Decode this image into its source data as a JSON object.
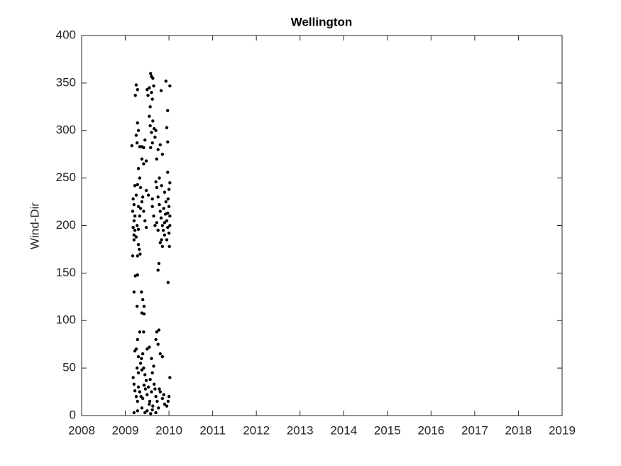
{
  "chart_data": {
    "type": "scatter",
    "title": "Wellington",
    "y_label": "Wind-Dir",
    "color": "#000000",
    "x": [
      2009.25,
      2009.28,
      2009.23,
      2009.5,
      2009.52,
      2009.55,
      2009.58,
      2009.6,
      2009.63,
      2009.65,
      2009.6,
      2009.62,
      2009.57,
      2009.82,
      2009.93,
      2010.02,
      2009.97,
      2009.28,
      2009.3,
      2009.25,
      2009.27,
      2009.33,
      2009.38,
      2009.42,
      2009.45,
      2009.15,
      2009.55,
      2009.57,
      2009.6,
      2009.63,
      2009.66,
      2009.68,
      2009.62,
      2009.58,
      2009.7,
      2009.75,
      2009.72,
      2009.8,
      2009.85,
      2009.95,
      2009.97,
      2009.38,
      2009.42,
      2009.48,
      2009.3,
      2009.33,
      2009.28,
      2009.22,
      2009.35,
      2009.48,
      2009.53,
      2009.62,
      2009.7,
      2009.72,
      2009.78,
      2009.83,
      2009.9,
      2009.97,
      2010.02,
      2010.0,
      2009.18,
      2009.2,
      2009.17,
      2009.22,
      2009.2,
      2009.18,
      2009.22,
      2009.2,
      2009.25,
      2009.27,
      2009.3,
      2009.33,
      2009.35,
      2009.38,
      2009.4,
      2009.42,
      2009.45,
      2009.48,
      2009.3,
      2009.32,
      2009.34,
      2009.28,
      2009.17,
      2009.2,
      2009.25,
      2009.3,
      2009.75,
      2009.78,
      2009.8,
      2009.82,
      2009.85,
      2009.87,
      2009.9,
      2009.92,
      2009.95,
      2009.97,
      2010.0,
      2010.02,
      2010.0,
      2009.98,
      2009.93,
      2009.88,
      2009.83,
      2009.8,
      2009.85,
      2010.01,
      2009.95,
      2009.72,
      2009.75,
      2009.68,
      2009.65,
      2009.62,
      2009.9,
      2009.97,
      2010.02,
      2009.77,
      2009.75,
      2009.98,
      2009.23,
      2009.28,
      2009.2,
      2009.37,
      2009.4,
      2009.43,
      2009.27,
      2009.38,
      2009.43,
      2009.33,
      2009.42,
      2009.28,
      2009.25,
      2009.22,
      2009.3,
      2009.37,
      2009.4,
      2009.35,
      2009.27,
      2009.3,
      2009.38,
      2009.42,
      2009.45,
      2009.48,
      2009.5,
      2009.55,
      2009.6,
      2009.65,
      2009.62,
      2009.57,
      2009.72,
      2009.77,
      2009.75,
      2009.8,
      2009.85,
      2009.7,
      2009.18,
      2009.2,
      2009.22,
      2009.25,
      2009.28,
      2009.3,
      2009.33,
      2009.36,
      2009.4,
      2009.43,
      2009.46,
      2009.5,
      2009.53,
      2009.56,
      2009.6,
      2009.63,
      2009.66,
      2009.68,
      2009.7,
      2009.73,
      2009.76,
      2009.8,
      2009.85,
      2009.9,
      2009.95,
      2010.0,
      2009.98,
      2010.02,
      2009.2,
      2009.28,
      2009.38,
      2009.45,
      2009.5,
      2009.55,
      2009.58,
      2009.62,
      2009.7,
      2009.78,
      2009.88
    ],
    "values": [
      348,
      343,
      337,
      343,
      337,
      345,
      360,
      357,
      355,
      347,
      340,
      333,
      325,
      342,
      352,
      347,
      321,
      308,
      300,
      295,
      287,
      283,
      283,
      282,
      290,
      284,
      315,
      305,
      298,
      310,
      302,
      293,
      287,
      282,
      300,
      280,
      270,
      285,
      275,
      303,
      288,
      270,
      265,
      268,
      260,
      250,
      243,
      242,
      240,
      237,
      232,
      228,
      246,
      240,
      250,
      242,
      235,
      256,
      245,
      238,
      228,
      222,
      215,
      210,
      205,
      198,
      195,
      190,
      188,
      200,
      196,
      210,
      218,
      225,
      230,
      215,
      205,
      198,
      180,
      175,
      170,
      168,
      168,
      185,
      232,
      220,
      230,
      222,
      215,
      208,
      200,
      195,
      190,
      212,
      205,
      198,
      192,
      210,
      220,
      228,
      225,
      218,
      185,
      182,
      178,
      178,
      185,
      203,
      195,
      200,
      210,
      220,
      203,
      213,
      200,
      160,
      153,
      140,
      147,
      148,
      130,
      130,
      122,
      115,
      115,
      108,
      107,
      88,
      88,
      80,
      70,
      68,
      62,
      60,
      65,
      55,
      50,
      45,
      48,
      50,
      43,
      37,
      70,
      72,
      60,
      52,
      45,
      38,
      88,
      90,
      75,
      65,
      62,
      80,
      40,
      33,
      26,
      20,
      15,
      30,
      25,
      20,
      18,
      32,
      28,
      22,
      30,
      15,
      25,
      10,
      33,
      28,
      20,
      15,
      8,
      25,
      18,
      12,
      10,
      20,
      15,
      40,
      3,
      5,
      8,
      3,
      5,
      12,
      2,
      6,
      3,
      28,
      22
    ],
    "xlim": [
      2008,
      2019
    ],
    "xticks": [
      2008,
      2009,
      2010,
      2011,
      2012,
      2013,
      2014,
      2015,
      2016,
      2017,
      2018,
      2019
    ],
    "ylim": [
      0,
      400
    ],
    "yticks": [
      0,
      50,
      100,
      150,
      200,
      250,
      300,
      350,
      400
    ]
  }
}
